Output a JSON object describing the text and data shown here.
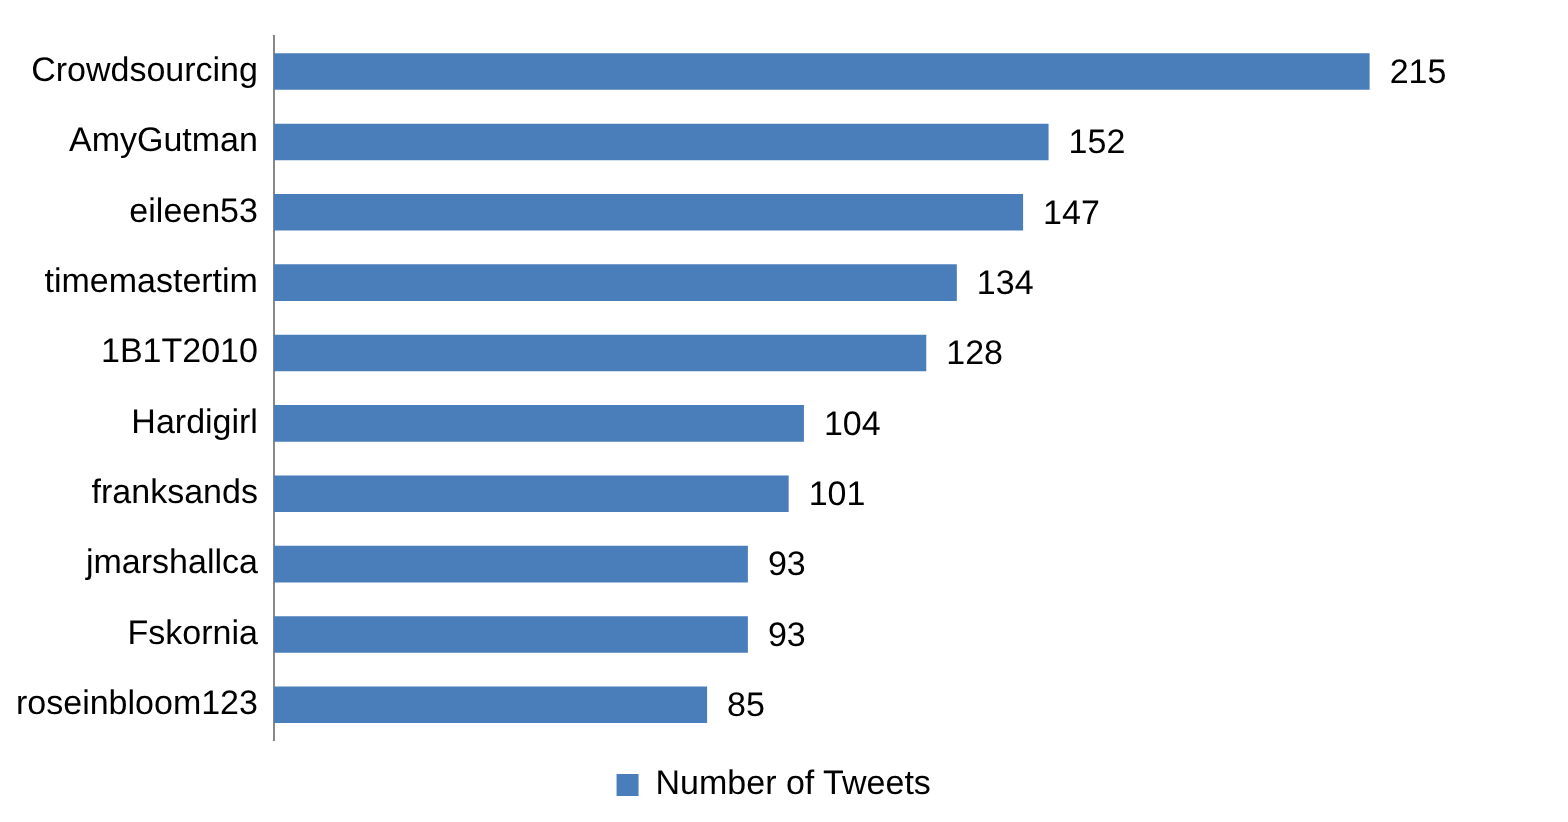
{
  "chart_data": {
    "type": "bar",
    "orientation": "horizontal",
    "categories": [
      "Crowdsourcing",
      "AmyGutman",
      "eileen53",
      "timemastertim",
      "1B1T2010",
      "Hardigirl",
      "franksands",
      "jmarshallca",
      "Fskornia",
      "roseinbloom123"
    ],
    "series": [
      {
        "name": "Number of Tweets",
        "color": "#4a7ebb",
        "values": [
          215,
          152,
          147,
          134,
          128,
          104,
          101,
          93,
          93,
          85
        ]
      }
    ],
    "data_labels": true,
    "legend": "bottom",
    "tick_labels": "y"
  }
}
